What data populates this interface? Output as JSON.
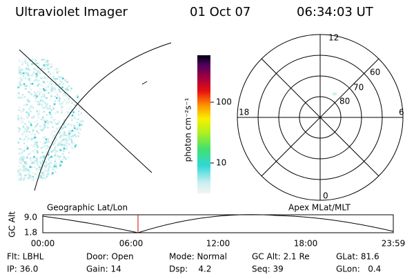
{
  "header": {
    "instrument": "Ultraviolet Imager",
    "date": "01 Oct 07",
    "time": "06:34:03 UT"
  },
  "colorbar": {
    "unit_label": "photon cm⁻²s⁻¹",
    "tick_labels": [
      "100",
      "10"
    ]
  },
  "polar_plot": {
    "mlt_labels": [
      "12",
      "18",
      "6",
      "0"
    ],
    "lat_labels": [
      "60",
      "70",
      "80"
    ]
  },
  "timeline": {
    "left_title": "Geographic Lat/Lon",
    "right_title": "Apex MLat/MLT",
    "axis_label": "GC Alt",
    "y_labels": [
      "9.0",
      "1.8"
    ],
    "time_labels": [
      "00:00",
      "06:00",
      "12:00",
      "18:00",
      "23:59"
    ]
  },
  "status": {
    "rows": [
      [
        "Flt: LBHL",
        "Door: Open",
        "Mode: Normal",
        "GC Alt: 2.1 Re",
        "GLat: 81.6"
      ],
      [
        "IP: 36.0",
        "Gain: 14",
        "Dsp:    4.2",
        "Seq: 39",
        "GLon:   0.4"
      ]
    ]
  }
}
